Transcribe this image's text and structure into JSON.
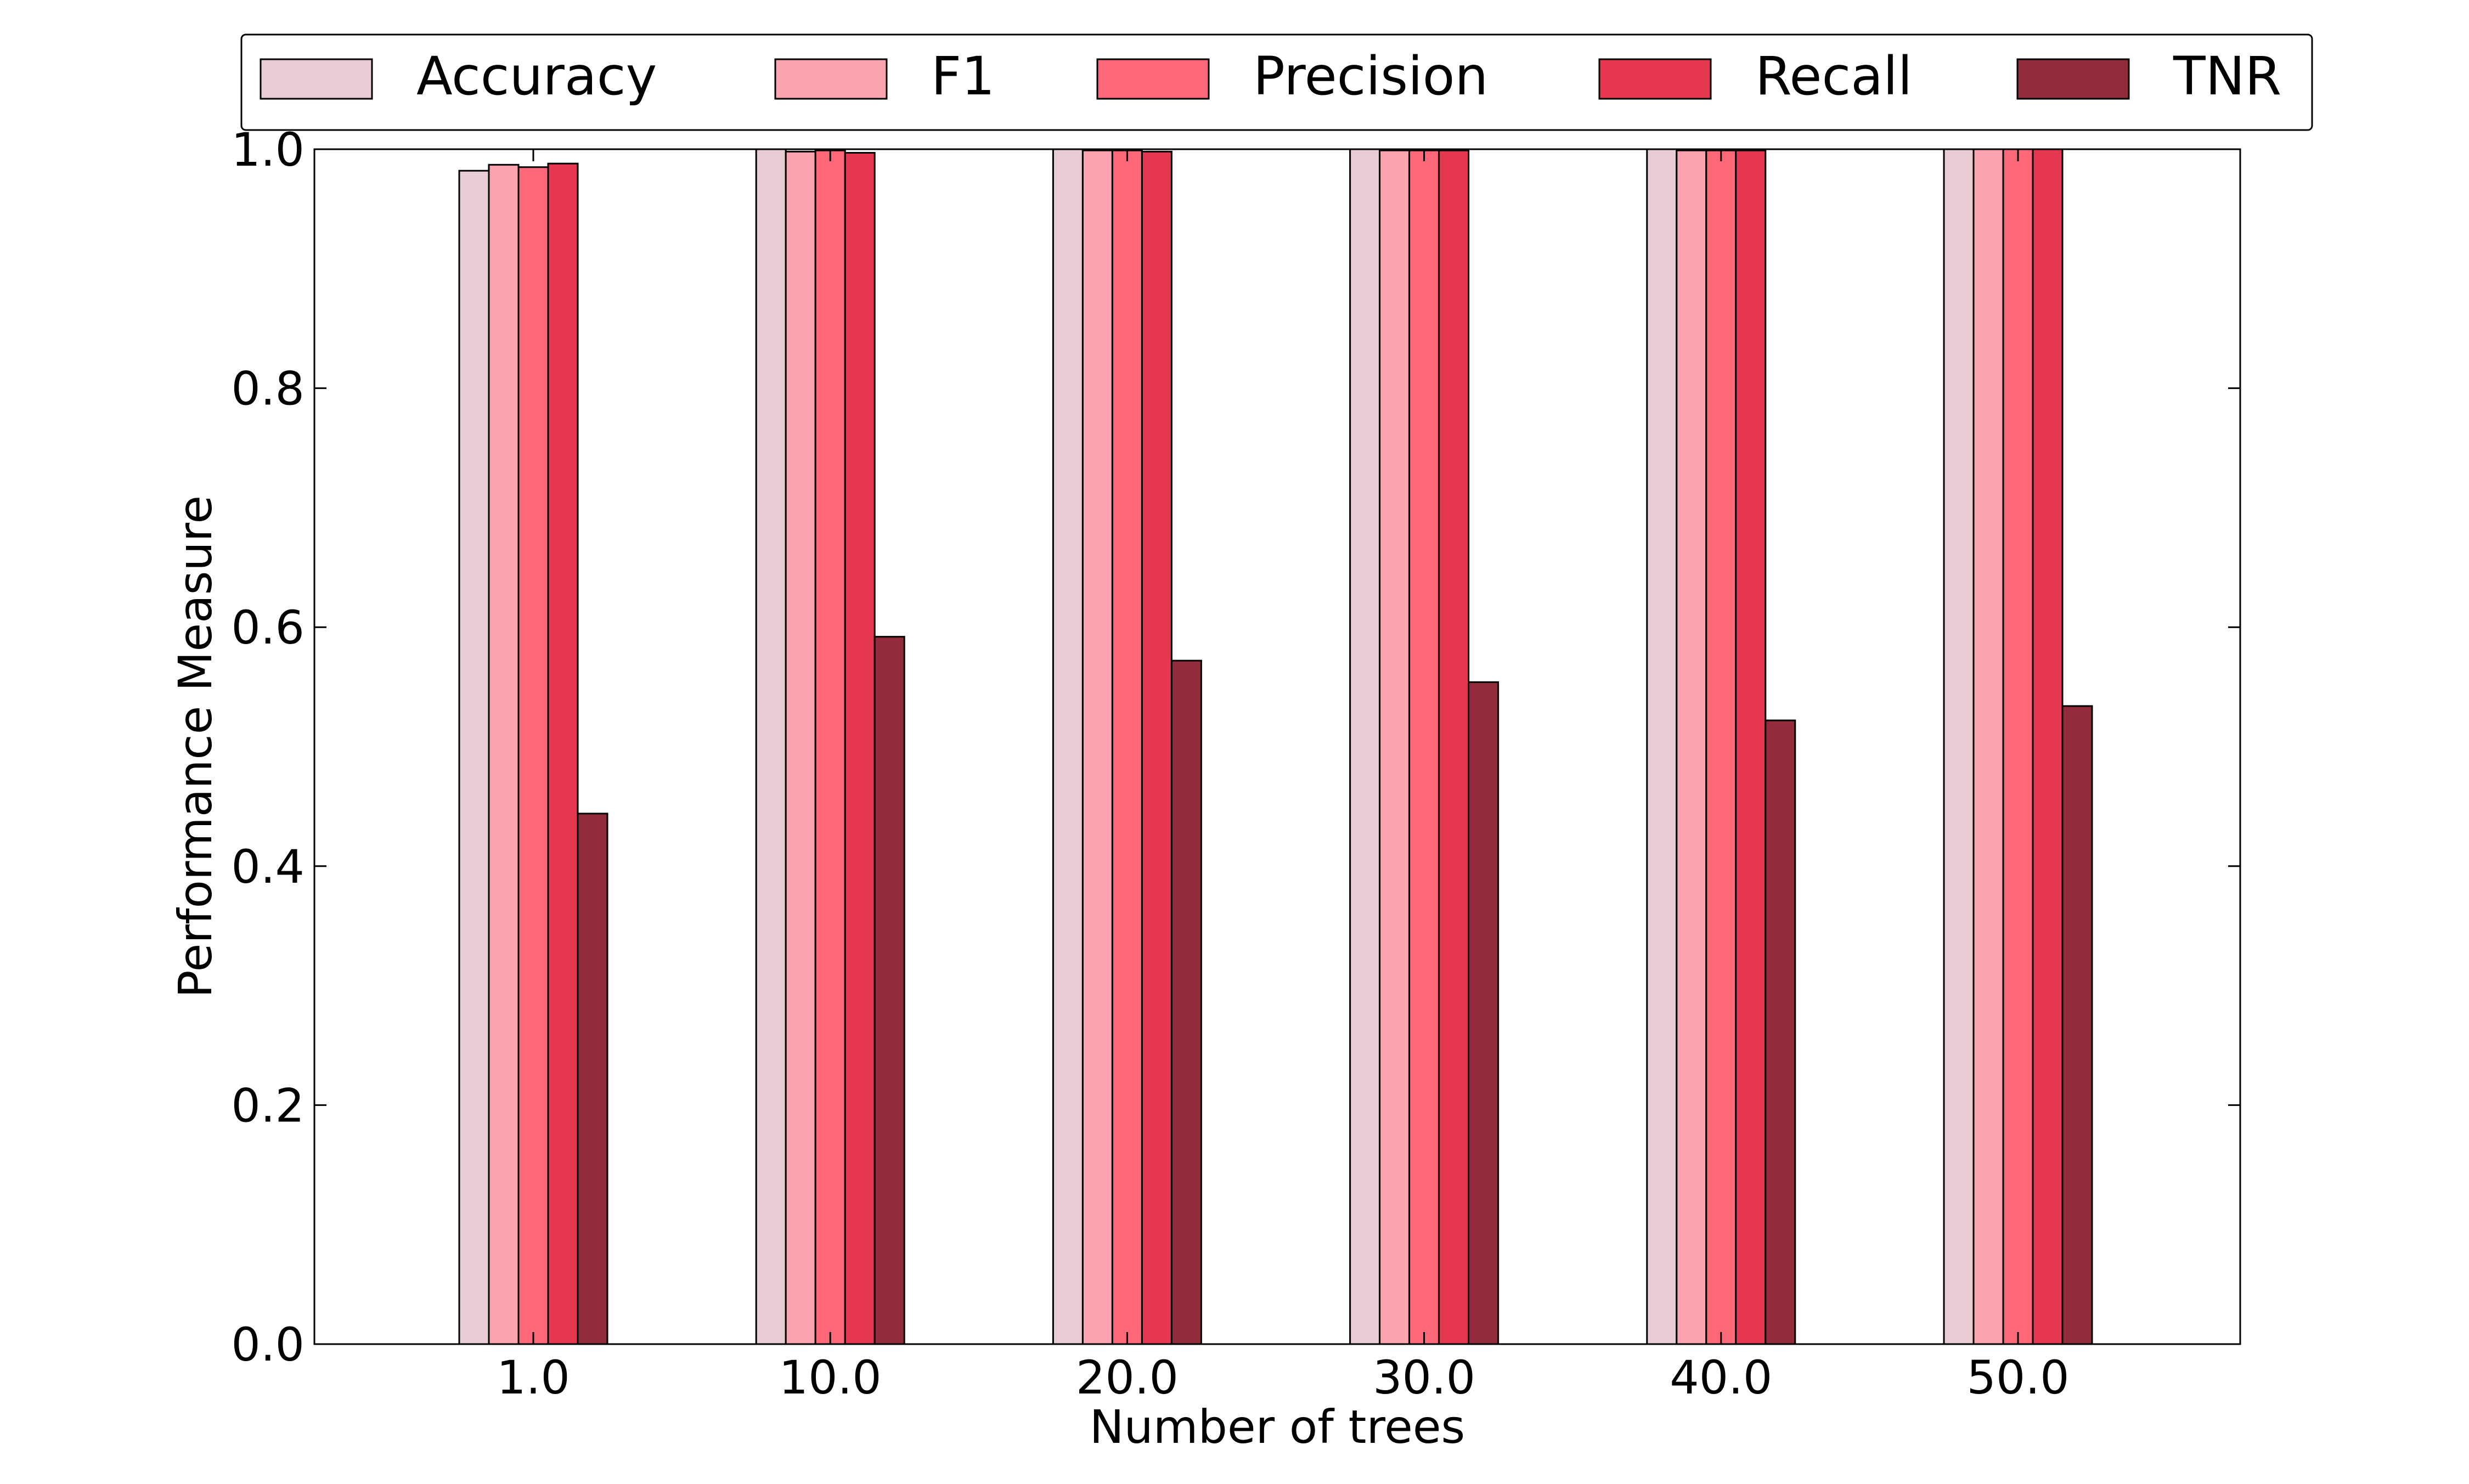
{
  "chart_data": {
    "type": "bar",
    "title": "",
    "xlabel": "Number of trees",
    "ylabel": "Performance Measure",
    "categories": [
      "1.0",
      "10.0",
      "20.0",
      "30.0",
      "40.0",
      "50.0"
    ],
    "ylim": [
      0.0,
      1.0
    ],
    "yticks": [
      "0.0",
      "0.2",
      "0.4",
      "0.6",
      "0.8",
      "1.0"
    ],
    "grid": false,
    "legend_position": "top",
    "series": [
      {
        "name": "Accuracy",
        "color": "#e8cbd3",
        "values": [
          0.982,
          1.0,
          1.0,
          1.0,
          1.0,
          1.0
        ]
      },
      {
        "name": "F1",
        "color": "#fba3ae",
        "values": [
          0.987,
          0.998,
          0.999,
          0.999,
          0.999,
          1.0
        ]
      },
      {
        "name": "Precision",
        "color": "#fd6979",
        "values": [
          0.985,
          0.999,
          0.999,
          0.999,
          0.999,
          1.0
        ]
      },
      {
        "name": "Recall",
        "color": "#e5374f",
        "values": [
          0.988,
          0.997,
          0.998,
          0.999,
          0.999,
          1.0
        ]
      },
      {
        "name": "TNR",
        "color": "#922b3b",
        "values": [
          0.444,
          0.592,
          0.572,
          0.554,
          0.522,
          0.534
        ]
      }
    ]
  }
}
